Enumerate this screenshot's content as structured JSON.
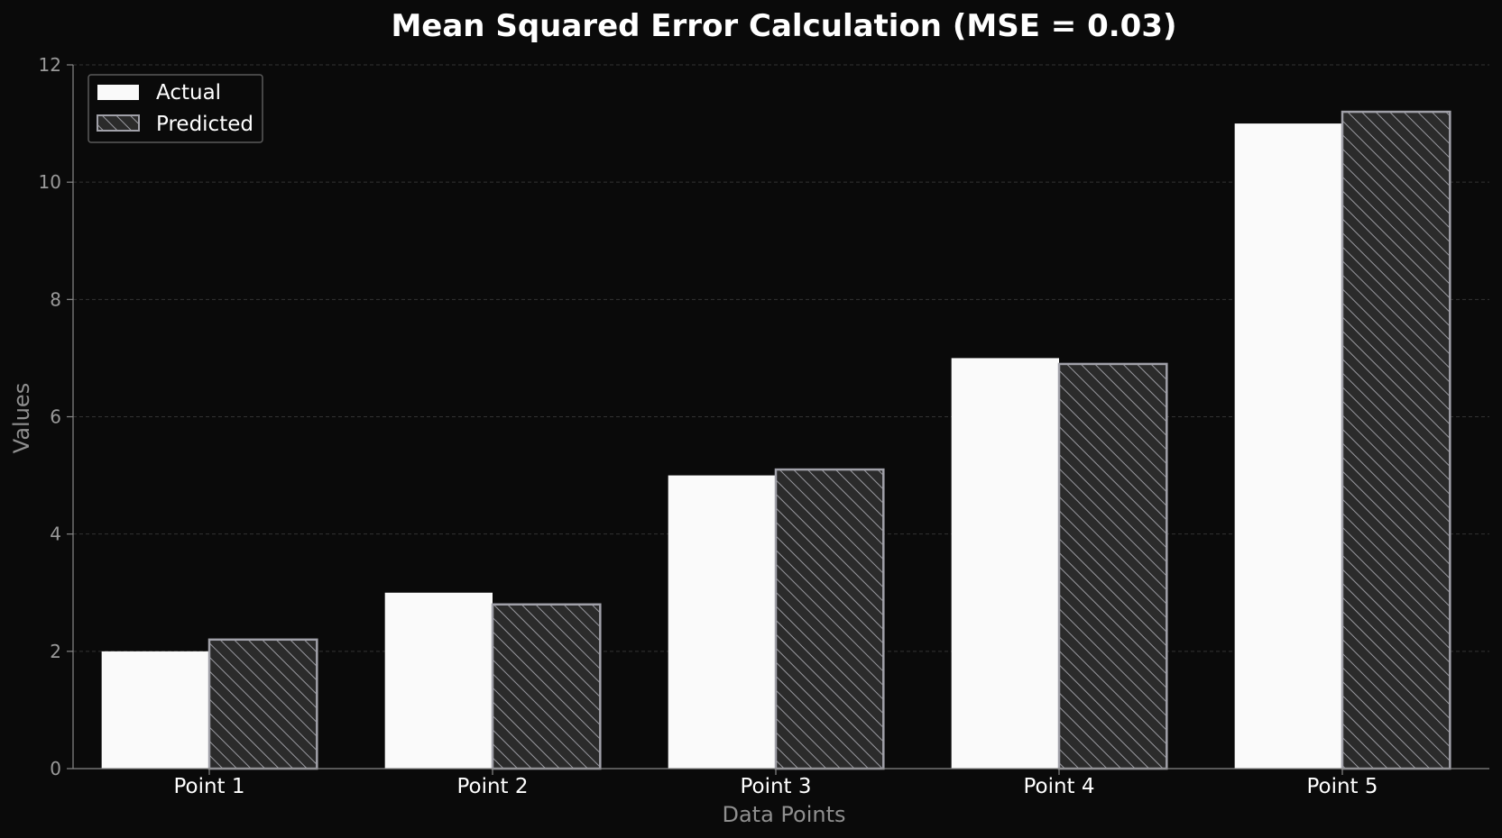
{
  "chart_data": {
    "type": "bar",
    "title": "Mean Squared Error Calculation (MSE = 0.03)",
    "xlabel": "Data Points",
    "ylabel": "Values",
    "categories": [
      "Point 1",
      "Point 2",
      "Point 3",
      "Point 4",
      "Point 5"
    ],
    "series": [
      {
        "name": "Actual",
        "values": [
          2,
          3,
          5,
          7,
          11
        ],
        "color": "#fafafa",
        "hatch": false
      },
      {
        "name": "Predicted",
        "values": [
          2.2,
          2.8,
          5.1,
          6.9,
          11.2
        ],
        "color": "#2b2b2b",
        "edge_color": "#a0a0a8",
        "hatch": true
      }
    ],
    "ylim": [
      0,
      12
    ],
    "yticks": [
      "0",
      "2",
      "4",
      "6",
      "8",
      "10",
      "12"
    ],
    "grid": true,
    "legend_position": "top-left",
    "colors": {
      "background": "#0a0a0a",
      "grid": "#333333",
      "axis": "#888888"
    }
  }
}
